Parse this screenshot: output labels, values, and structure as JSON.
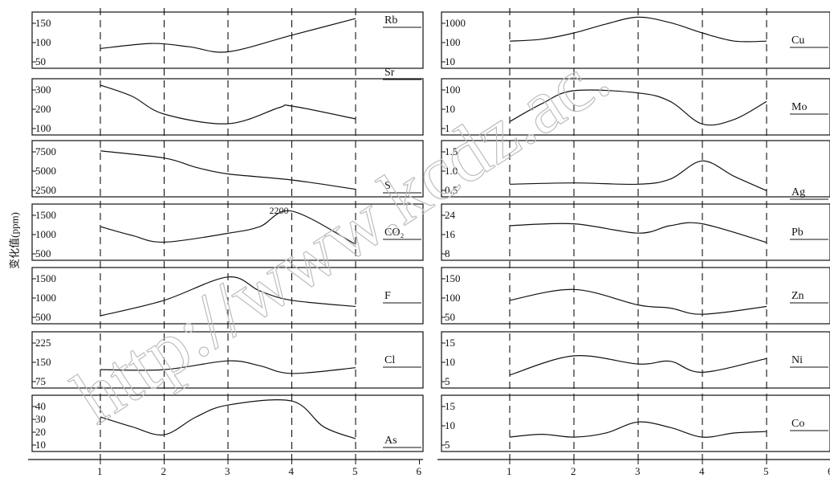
{
  "y_axis_title": "变化值(ppm)",
  "watermark": "http://www.kcdz.ac.",
  "chart_data": [
    {
      "type": "line",
      "element": "Rb",
      "x": [
        1,
        1.8,
        2.4,
        3,
        4,
        5
      ],
      "y": [
        85,
        100,
        90,
        75,
        125,
        175
      ],
      "ticks": [
        "150",
        "100",
        "50"
      ]
    },
    {
      "type": "line",
      "element": "Sr",
      "x": [
        1,
        1.5,
        2,
        3,
        3.8,
        4,
        5
      ],
      "y": [
        340,
        270,
        160,
        100,
        200,
        210,
        130
      ],
      "ticks": [
        "300",
        "200",
        "100"
      ]
    },
    {
      "type": "line",
      "element": "S",
      "x": [
        1,
        2,
        2.5,
        3,
        4,
        5
      ],
      "y": [
        7500,
        6200,
        4500,
        3300,
        2200,
        500
      ],
      "ticks": [
        "7500",
        "5000",
        "2500"
      ]
    },
    {
      "type": "line",
      "element": "CO₂",
      "x": [
        1,
        1.5,
        2,
        3,
        3.5,
        4,
        5
      ],
      "y": [
        1500,
        1100,
        800,
        1200,
        1500,
        2200,
        700
      ],
      "ticks": [
        "1500",
        "1000",
        "500"
      ],
      "annotation": "2200"
    },
    {
      "type": "line",
      "element": "F",
      "x": [
        1,
        2,
        3,
        3.5,
        4,
        5
      ],
      "y": [
        300,
        800,
        1550,
        1100,
        800,
        600
      ],
      "ticks": [
        "1500",
        "1000",
        "500"
      ]
    },
    {
      "type": "line",
      "element": "Cl",
      "x": [
        1,
        2,
        3,
        3.5,
        4,
        5
      ],
      "y": [
        90,
        90,
        135,
        110,
        70,
        100
      ],
      "ticks": [
        "225",
        "150",
        "75"
      ]
    },
    {
      "type": "line",
      "element": "As",
      "x": [
        1,
        1.5,
        2,
        2.5,
        3,
        4,
        4.5,
        5
      ],
      "y": [
        30,
        20,
        12,
        30,
        42,
        46,
        20,
        8
      ],
      "ticks": [
        "40",
        "30",
        "20",
        "10"
      ]
    },
    {
      "type": "line",
      "element": "Cu",
      "x": [
        1,
        1.5,
        2,
        2.5,
        3,
        3.5,
        4,
        4.5,
        5
      ],
      "y": [
        100,
        130,
        300,
        1000,
        2500,
        1200,
        300,
        100,
        100
      ],
      "ticks": [
        "1000",
        "100",
        "10"
      ]
    },
    {
      "type": "line",
      "element": "Mo",
      "x": [
        1,
        1.5,
        2,
        3,
        3.5,
        4,
        4.5,
        5
      ],
      "y": [
        1.5,
        15,
        80,
        60,
        20,
        1.1,
        2,
        20
      ],
      "ticks": [
        "100",
        "10",
        "1"
      ]
    },
    {
      "type": "line",
      "element": "Ag",
      "x": [
        1,
        2,
        3,
        3.5,
        4,
        4.5,
        5
      ],
      "y": [
        0.3,
        0.35,
        0.3,
        0.5,
        1.2,
        0.6,
        0.05
      ],
      "ticks": [
        "1.5",
        "1.0",
        "0.5"
      ]
    },
    {
      "type": "line",
      "element": "Pb",
      "x": [
        1,
        2,
        3,
        3.5,
        4,
        5
      ],
      "y": [
        18,
        19,
        14,
        18,
        19,
        9
      ],
      "ticks": [
        "24",
        "16",
        "8"
      ]
    },
    {
      "type": "line",
      "element": "Zn",
      "x": [
        1,
        2,
        3,
        3.5,
        4,
        5
      ],
      "y": [
        80,
        115,
        65,
        55,
        35,
        60
      ],
      "ticks": [
        "150",
        "100",
        "50"
      ]
    },
    {
      "type": "line",
      "element": "Ni",
      "x": [
        1,
        2,
        3,
        3.5,
        4,
        5
      ],
      "y": [
        3,
        10,
        7,
        8,
        4,
        9
      ],
      "ticks": [
        "15",
        "10",
        "5"
      ]
    },
    {
      "type": "line",
      "element": "Co",
      "x": [
        1,
        1.5,
        2,
        2.5,
        3,
        3.5,
        4,
        4.5,
        5
      ],
      "y": [
        3.5,
        4.5,
        3.5,
        5,
        9,
        7,
        3.5,
        5,
        5.5
      ],
      "ticks": [
        "15",
        "10",
        "5"
      ]
    }
  ],
  "x_ticks": [
    "1",
    "2",
    "3",
    "4",
    "5",
    "6"
  ]
}
